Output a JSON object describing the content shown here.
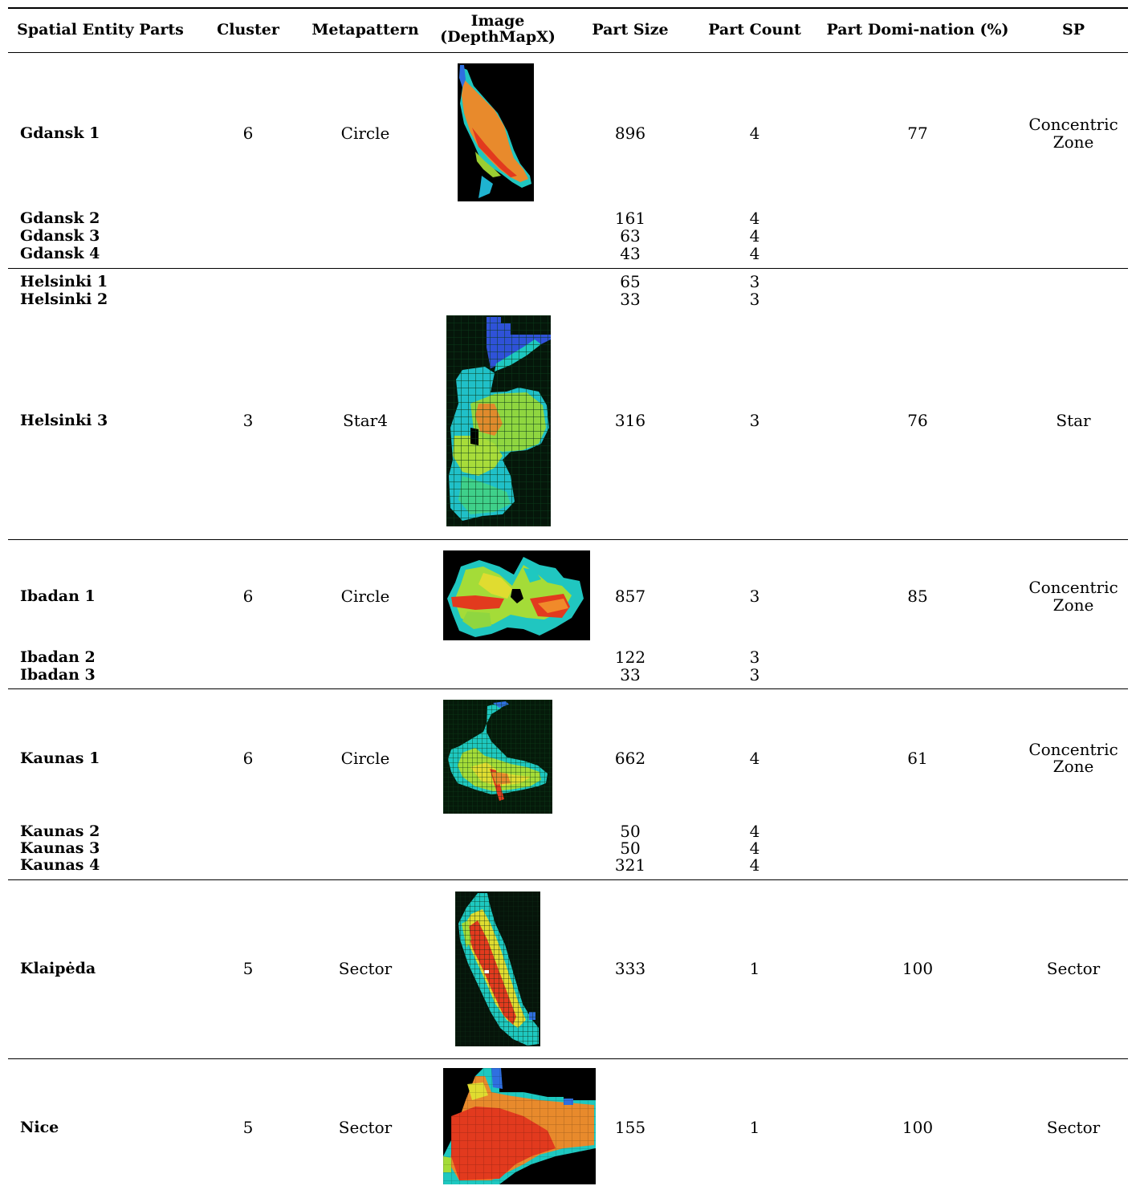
{
  "header": {
    "spatial_entity_parts": "Spatial Entity Parts",
    "cluster": "Cluster",
    "metapattern": "Metapattern",
    "image_line1": "Image",
    "image_line2": "(DepthMapX)",
    "part_size": "Part Size",
    "part_count": "Part Count",
    "part_domination": "Part Domi-nation (%)",
    "sp": "SP"
  },
  "groups": [
    {
      "key": "gdansk",
      "main": {
        "name": "Gdansk 1",
        "cluster": "6",
        "metapattern": "Circle",
        "part_size": "896",
        "part_count": "4",
        "domination": "77",
        "sp_line1": "Concentric",
        "sp_line2": "Zone"
      },
      "subs": [
        {
          "name": "Gdansk 2",
          "part_size": "161",
          "part_count": "4"
        },
        {
          "name": "Gdansk 3",
          "part_size": "63",
          "part_count": "4"
        },
        {
          "name": "Gdansk 4",
          "part_size": "43",
          "part_count": "4"
        }
      ]
    },
    {
      "key": "helsinki",
      "pre": [
        {
          "name": "Helsinki 1",
          "part_size": "65",
          "part_count": "3"
        },
        {
          "name": "Helsinki 2",
          "part_size": "33",
          "part_count": "3"
        }
      ],
      "main": {
        "name": "Helsinki 3",
        "cluster": "3",
        "metapattern": "Star4",
        "part_size": "316",
        "part_count": "3",
        "domination": "76",
        "sp_line1": "Star"
      }
    },
    {
      "key": "ibadan",
      "main": {
        "name": "Ibadan 1",
        "cluster": "6",
        "metapattern": "Circle",
        "part_size": "857",
        "part_count": "3",
        "domination": "85",
        "sp_line1": "Concentric",
        "sp_line2": "Zone"
      },
      "subs": [
        {
          "name": "Ibadan 2",
          "part_size": "122",
          "part_count": "3"
        },
        {
          "name": "Ibadan 3",
          "part_size": "33",
          "part_count": "3"
        }
      ]
    },
    {
      "key": "kaunas",
      "main": {
        "name": "Kaunas 1",
        "cluster": "6",
        "metapattern": "Circle",
        "part_size": "662",
        "part_count": "4",
        "domination": "61",
        "sp_line1": "Concentric",
        "sp_line2": "Zone"
      },
      "subs": [
        {
          "name": "Kaunas 2",
          "part_size": "50",
          "part_count": "4"
        },
        {
          "name": "Kaunas 3",
          "part_size": "50",
          "part_count": "4"
        },
        {
          "name": "Kaunas 4",
          "part_size": "321",
          "part_count": "4"
        }
      ]
    },
    {
      "key": "klaipeda",
      "main": {
        "name": "Klaipėda",
        "cluster": "5",
        "metapattern": "Sector",
        "part_size": "333",
        "part_count": "1",
        "domination": "100",
        "sp_line1": "Sector"
      }
    },
    {
      "key": "nice",
      "main": {
        "name": "Nice",
        "cluster": "5",
        "metapattern": "Sector",
        "part_size": "155",
        "part_count": "1",
        "domination": "100",
        "sp_line1": "Sector"
      }
    }
  ]
}
